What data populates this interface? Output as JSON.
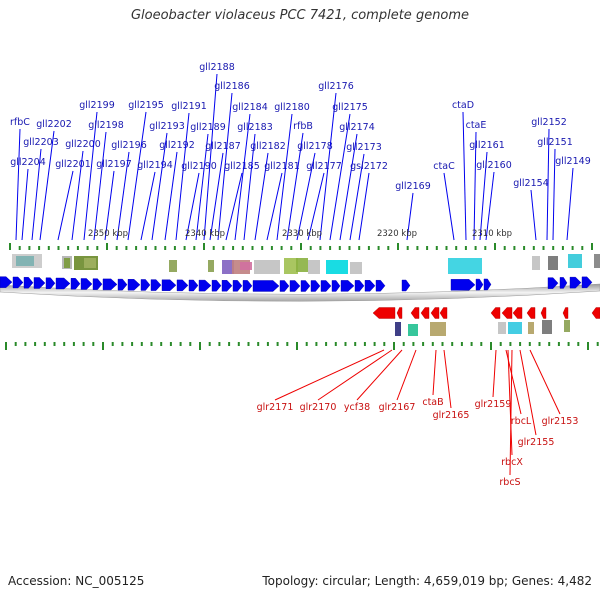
{
  "title": "Gloeobacter violaceus PCC 7421, complete genome",
  "accession_text": "Accession: NC_005125",
  "topology_text": "Topology: circular; Length: 4,659,019 bp; Genes: 4,482",
  "colors": {
    "forward": "#0000ee",
    "reverse": "#ee0000",
    "forward_label": "#1818b0",
    "reverse_label": "#c81010",
    "tick": "#2a8a2a",
    "backbone": "#b8b8b8"
  },
  "scale_labels": [
    "2350 kbp",
    "2340 kbp",
    "2330 kbp",
    "2320 kbp",
    "2310 kbp"
  ],
  "forward_genes": [
    "rfbC",
    "gll2204",
    "gll2203",
    "gll2202",
    "gll2201",
    "gll2200",
    "gll2199",
    "gll2198",
    "gll2197",
    "gll2196",
    "gll2195",
    "gll2194",
    "gll2193",
    "gll2192",
    "gll2191",
    "gll2190",
    "gll2189",
    "gll2188",
    "gll2187",
    "gll2186",
    "gll2185",
    "gll2184",
    "gll2183",
    "gll2182",
    "gll2181",
    "gll2180",
    "rfbB",
    "gll2178",
    "gll2177",
    "gll2176",
    "gll2175",
    "gll2174",
    "gll2173",
    "gsl2172",
    "gll2169",
    "ctaC",
    "ctaD",
    "ctaE",
    "gll2161",
    "gll2160",
    "gll2154",
    "gll2152",
    "gll2151",
    "gll2149"
  ],
  "reverse_genes": [
    "glr2171",
    "glr2170",
    "ycf38",
    "glr2167",
    "ctaB",
    "glr2165",
    "glr2159",
    "rbcL",
    "glr2155",
    "glr2153",
    "rbcX",
    "rbcS"
  ]
}
